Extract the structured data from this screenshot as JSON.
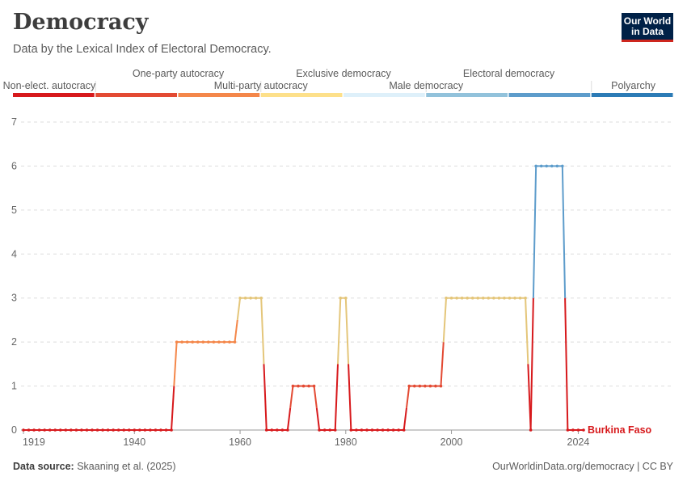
{
  "header": {
    "title": "Democracy",
    "subtitle": "Data by the Lexical Index of Electoral Democracy.",
    "logo_line1": "Our World",
    "logo_line2": "in Data"
  },
  "footer": {
    "source_label": "Data source:",
    "source_text": "Skaaning et al. (2025)",
    "url_text": "OurWorldinData.org/democracy | CC BY"
  },
  "colors": {
    "scale": [
      "#d7191c",
      "#e34a33",
      "#f4874a",
      "#fde08a",
      "#def0fa",
      "#92c2db",
      "#5d9ccb",
      "#2c7bb6"
    ],
    "line_yellow": "#e4c67a"
  },
  "chart_data": {
    "type": "line",
    "title": "Democracy",
    "subtitle": "Data by the Lexical Index of Electoral Democracy.",
    "legend_categories": [
      "Non-elect. autocracy",
      "One-party autocracy",
      "Multi-party autocracy",
      "Exclusive democracy",
      "Male democracy",
      "Electoral democracy",
      "Polyarchy"
    ],
    "legend_placement": "top",
    "x_ticks": [
      "1919",
      "1940",
      "1960",
      "1980",
      "2000",
      "2024"
    ],
    "y_ticks": [
      "0",
      "1",
      "2",
      "3",
      "4",
      "5",
      "6",
      "7"
    ],
    "xlim": [
      1919,
      2025
    ],
    "ylim": [
      0,
      7
    ],
    "grid": true,
    "series": [
      {
        "name": "Burkina Faso",
        "x": [
          1919,
          1920,
          1921,
          1922,
          1923,
          1924,
          1925,
          1926,
          1927,
          1928,
          1929,
          1930,
          1931,
          1932,
          1933,
          1934,
          1935,
          1936,
          1937,
          1938,
          1939,
          1940,
          1941,
          1942,
          1943,
          1944,
          1945,
          1946,
          1947,
          1948,
          1949,
          1950,
          1951,
          1952,
          1953,
          1954,
          1955,
          1956,
          1957,
          1958,
          1959,
          1960,
          1961,
          1962,
          1963,
          1964,
          1965,
          1966,
          1967,
          1968,
          1969,
          1970,
          1971,
          1972,
          1973,
          1974,
          1975,
          1976,
          1977,
          1978,
          1979,
          1980,
          1981,
          1982,
          1983,
          1984,
          1985,
          1986,
          1987,
          1988,
          1989,
          1990,
          1991,
          1992,
          1993,
          1994,
          1995,
          1996,
          1997,
          1998,
          1999,
          2000,
          2001,
          2002,
          2003,
          2004,
          2005,
          2006,
          2007,
          2008,
          2009,
          2010,
          2011,
          2012,
          2013,
          2014,
          2015,
          2016,
          2017,
          2018,
          2019,
          2020,
          2021,
          2022,
          2023,
          2024,
          2025
        ],
        "values": [
          0,
          0,
          0,
          0,
          0,
          0,
          0,
          0,
          0,
          0,
          0,
          0,
          0,
          0,
          0,
          0,
          0,
          0,
          0,
          0,
          0,
          0,
          0,
          0,
          0,
          0,
          0,
          0,
          0,
          2,
          2,
          2,
          2,
          2,
          2,
          2,
          2,
          2,
          2,
          2,
          2,
          3,
          3,
          3,
          3,
          3,
          0,
          0,
          0,
          0,
          0,
          1,
          1,
          1,
          1,
          1,
          0,
          0,
          0,
          0,
          3,
          3,
          0,
          0,
          0,
          0,
          0,
          0,
          0,
          0,
          0,
          0,
          0,
          1,
          1,
          1,
          1,
          1,
          1,
          1,
          3,
          3,
          3,
          3,
          3,
          3,
          3,
          3,
          3,
          3,
          3,
          3,
          3,
          3,
          3,
          3,
          0,
          6,
          6,
          6,
          6,
          6,
          6,
          0,
          0,
          0,
          0
        ]
      }
    ]
  }
}
